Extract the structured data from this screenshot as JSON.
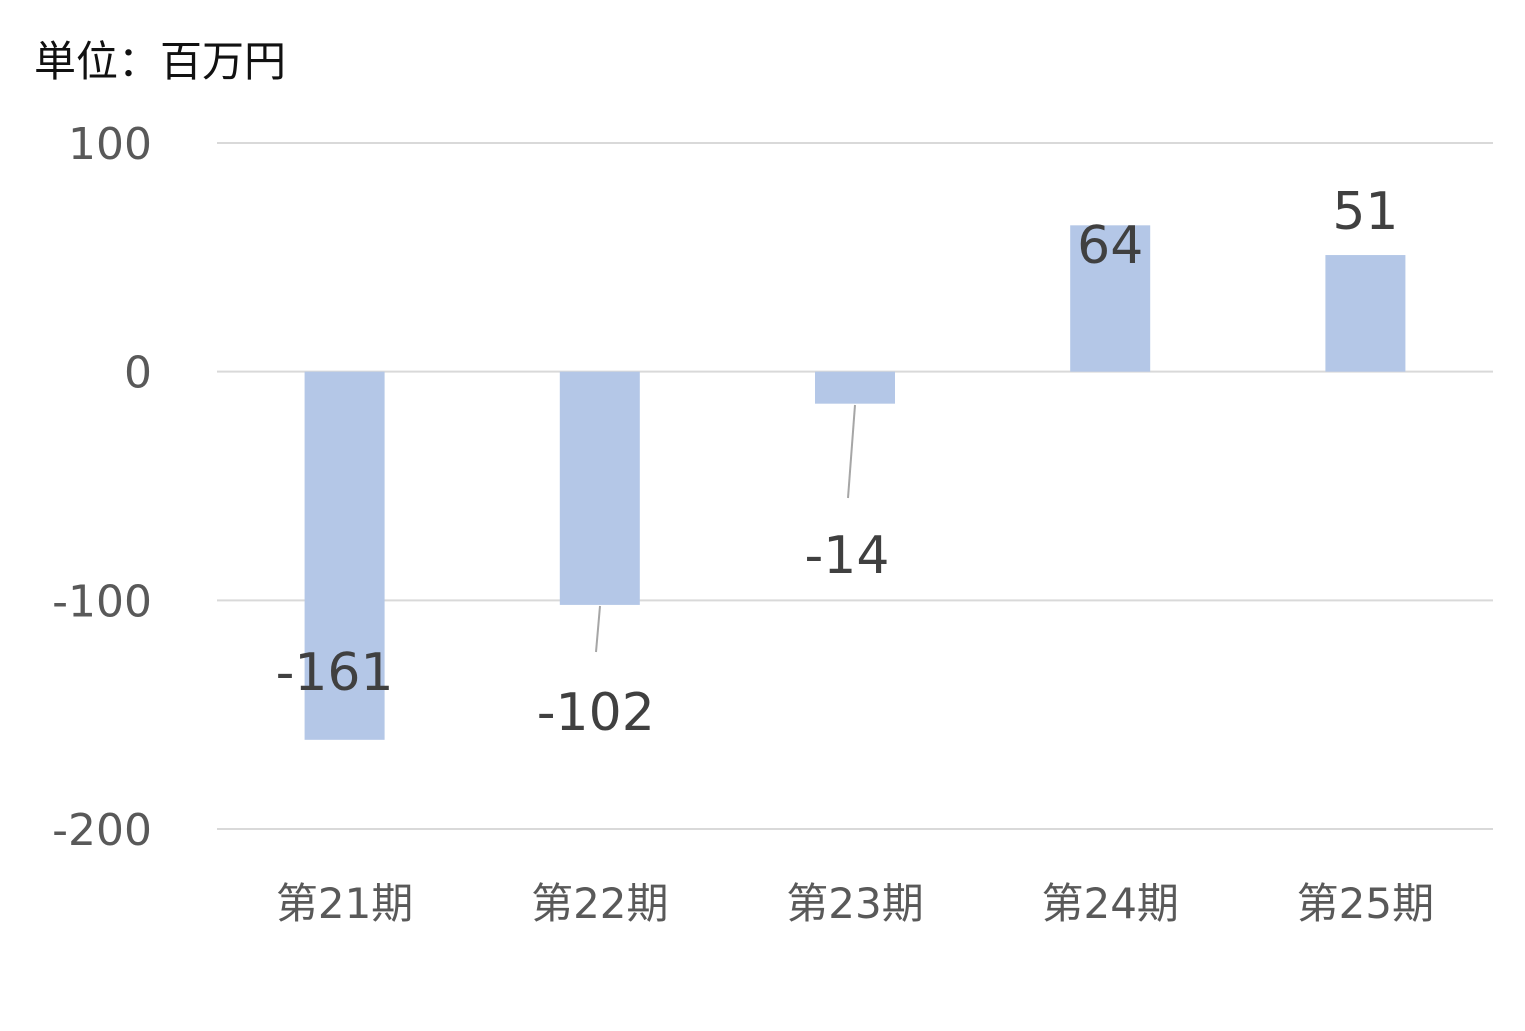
{
  "unit_label": "単位：百万円",
  "colors": {
    "bar": "#b4c7e7",
    "grid": "#d9d9d9",
    "tick_text": "#595959",
    "data_label_text": "#404040",
    "leader_line": "#a6a6a6"
  },
  "chart_data": {
    "type": "bar",
    "categories": [
      "第21期",
      "第22期",
      "第23期",
      "第24期",
      "第25期"
    ],
    "values": [
      -161,
      -102,
      -14,
      64,
      51
    ],
    "data_labels": [
      "-161",
      "-102",
      "-14",
      "64",
      "51"
    ],
    "title": "",
    "xlabel": "",
    "ylabel": "",
    "ylim": [
      -200,
      100
    ],
    "yticks": [
      100,
      0,
      -100,
      -200
    ],
    "ytick_labels": [
      "100",
      "0",
      "-100",
      "-200"
    ],
    "grid": true,
    "legend": "none"
  }
}
